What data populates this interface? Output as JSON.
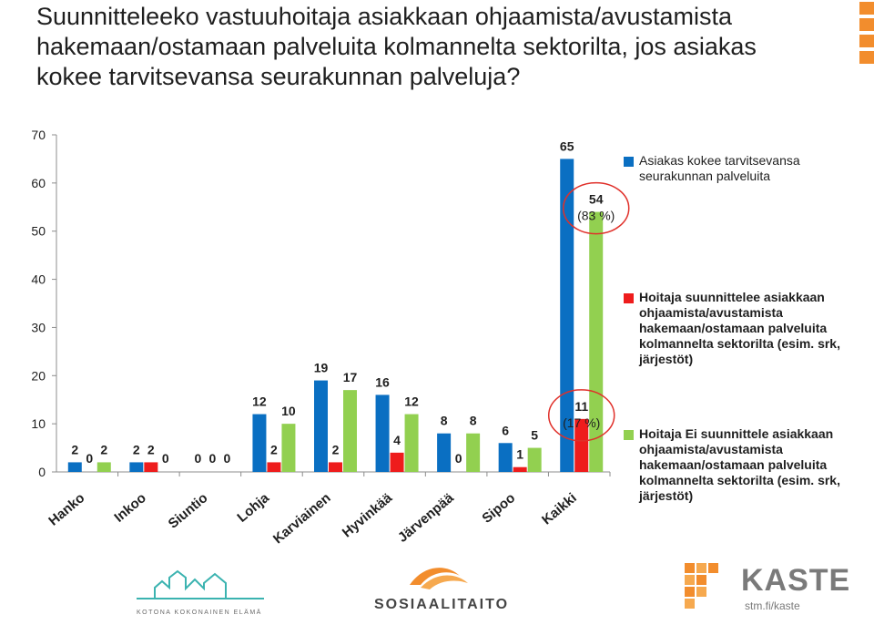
{
  "title_lines": [
    "Suunnitteleeko vastuuhoitaja asiakkaan ohjaamista/avustamista",
    "hakemaan/ostamaan palveluita kolmannelta sektorilta, jos asiakas",
    "kokee tarvitsevansa seurakunnan palveluja?"
  ],
  "chart_data": {
    "type": "bar",
    "categories": [
      "Hanko",
      "Inkoo",
      "Siuntio",
      "Lohja",
      "Karviainen",
      "Hyvinkää",
      "Järvenpää",
      "Sipoo",
      "Kaikki"
    ],
    "series": [
      {
        "name": "Asiakas kokee tarvitsevansa seurakunnan palveluita",
        "color": "#0a6fc2",
        "values": [
          2,
          2,
          0,
          12,
          19,
          16,
          8,
          6,
          65
        ]
      },
      {
        "name": "Hoitaja suunnittelee asiakkaan ohjaamista/avustamista hakemaan/ostamaan palveluita kolmannelta sektorilta (esim. srk, järjestöt)",
        "color": "#ee1c1c",
        "values": [
          0,
          2,
          0,
          2,
          2,
          4,
          0,
          1,
          11
        ]
      },
      {
        "name": "Hoitaja Ei suunnittele asiakkaan ohjaamista/avustamista hakemaan/ostamaan palveluita kolmannelta sektorilta (esim. srk, järjestöt)",
        "color": "#92d050",
        "values": [
          2,
          0,
          0,
          10,
          17,
          12,
          8,
          5,
          54
        ]
      }
    ],
    "yticks": [
      0,
      10,
      20,
      30,
      40,
      50,
      60,
      70
    ],
    "ylim": [
      0,
      70
    ],
    "annotations": [
      {
        "text": "(83 %)",
        "category": "Kaikki",
        "series": 2
      },
      {
        "text": "(17 %)",
        "category": "Kaikki",
        "series": 1
      }
    ],
    "grid": false,
    "legend_position": "right"
  },
  "logos": {
    "left_caption": "KOTONA KOKONAINEN ELÄMÄ",
    "center": "SOSIAALITAITO",
    "right_name": "KASTE",
    "right_sub": "stm.fi/kaste"
  },
  "colors": {
    "accent": "#f28d2d",
    "circle": "#e0302a",
    "logo_teal": "#3bb3b0",
    "kaste_gray": "#7a7a7a"
  }
}
